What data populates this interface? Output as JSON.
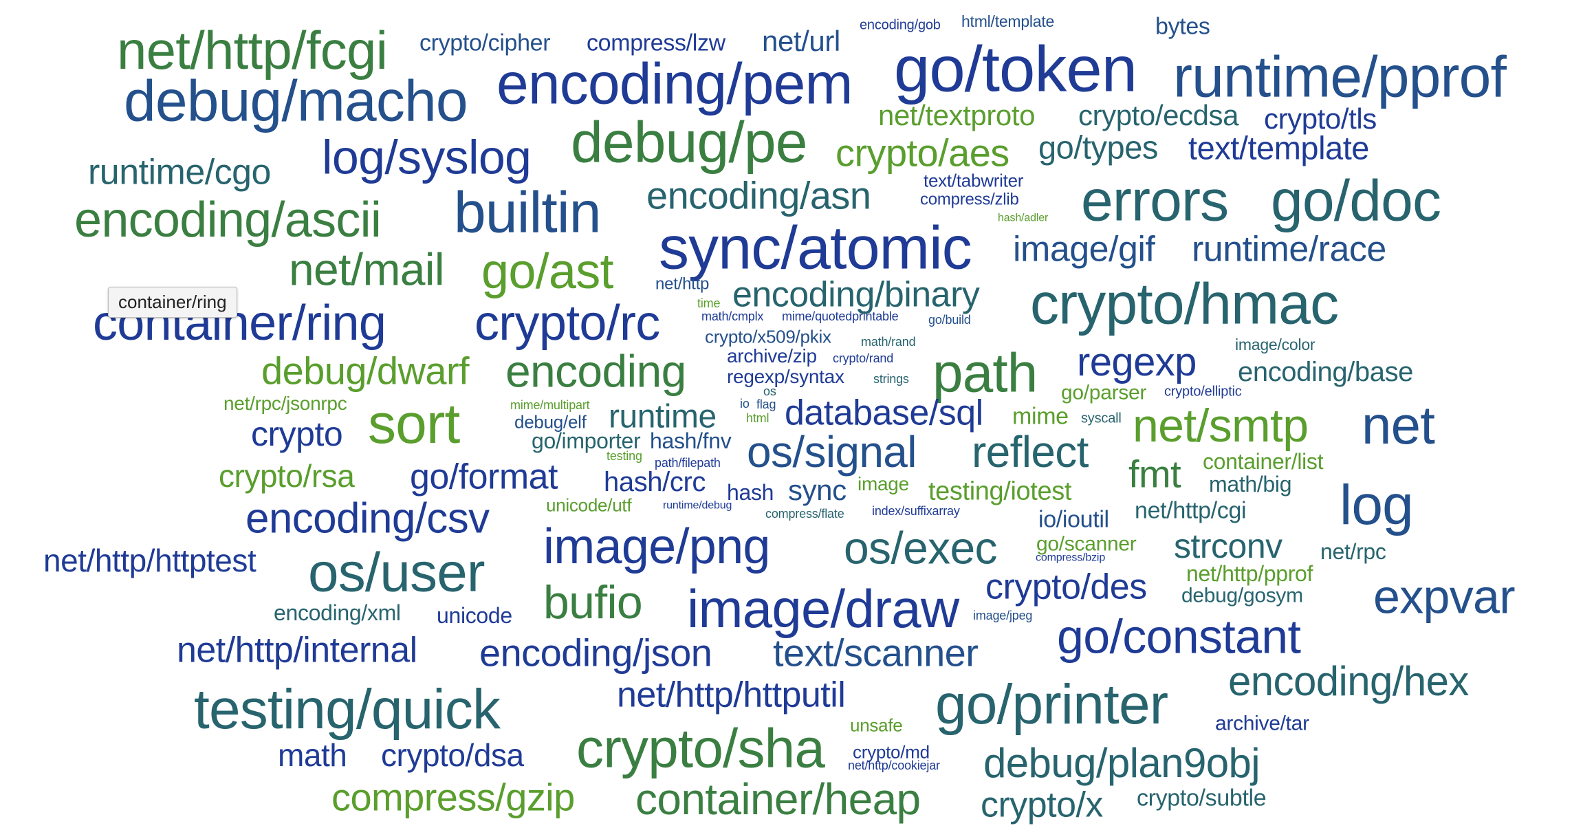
{
  "colors": {
    "blue": "#1f3b96",
    "navy": "#24508c",
    "teal": "#27646e",
    "green": "#3a7f41",
    "lime": "#5a9e2d"
  },
  "tooltip": {
    "text": "container/ring"
  },
  "words": [
    {
      "text": "net/http/fcgi",
      "color": "green"
    },
    {
      "text": "crypto/cipher",
      "color": "navy"
    },
    {
      "text": "compress/lzw",
      "color": "blue"
    },
    {
      "text": "net/url",
      "color": "navy"
    },
    {
      "text": "encoding/gob",
      "color": "blue"
    },
    {
      "text": "html/template",
      "color": "navy"
    },
    {
      "text": "bytes",
      "color": "navy"
    },
    {
      "text": "debug/macho",
      "color": "navy"
    },
    {
      "text": "encoding/pem",
      "color": "blue"
    },
    {
      "text": "go/token",
      "color": "blue"
    },
    {
      "text": "runtime/pprof",
      "color": "navy"
    },
    {
      "text": "net/textproto",
      "color": "lime"
    },
    {
      "text": "crypto/ecdsa",
      "color": "teal"
    },
    {
      "text": "crypto/tls",
      "color": "blue"
    },
    {
      "text": "runtime/cgo",
      "color": "teal"
    },
    {
      "text": "log/syslog",
      "color": "blue"
    },
    {
      "text": "debug/pe",
      "color": "green"
    },
    {
      "text": "crypto/aes",
      "color": "lime"
    },
    {
      "text": "go/types",
      "color": "teal"
    },
    {
      "text": "text/template",
      "color": "blue"
    },
    {
      "text": "encoding/ascii",
      "color": "green"
    },
    {
      "text": "builtin",
      "color": "navy"
    },
    {
      "text": "encoding/asn",
      "color": "teal"
    },
    {
      "text": "text/tabwriter",
      "color": "blue"
    },
    {
      "text": "compress/zlib",
      "color": "blue"
    },
    {
      "text": "hash/adler",
      "color": "lime"
    },
    {
      "text": "errors",
      "color": "teal"
    },
    {
      "text": "go/doc",
      "color": "teal"
    },
    {
      "text": "net/mail",
      "color": "green"
    },
    {
      "text": "go/ast",
      "color": "lime"
    },
    {
      "text": "sync/atomic",
      "color": "blue"
    },
    {
      "text": "image/gif",
      "color": "navy"
    },
    {
      "text": "runtime/race",
      "color": "navy"
    },
    {
      "text": "net/http",
      "color": "navy"
    },
    {
      "text": "encoding/binary",
      "color": "teal"
    },
    {
      "text": "time",
      "color": "lime"
    },
    {
      "text": "container/ring",
      "color": "blue"
    },
    {
      "text": "crypto/rc",
      "color": "blue"
    },
    {
      "text": "math/cmplx",
      "color": "blue"
    },
    {
      "text": "mime/quotedprintable",
      "color": "blue"
    },
    {
      "text": "go/build",
      "color": "navy"
    },
    {
      "text": "crypto/hmac",
      "color": "teal"
    },
    {
      "text": "crypto/x509/pkix",
      "color": "navy"
    },
    {
      "text": "math/rand",
      "color": "teal"
    },
    {
      "text": "image/color",
      "color": "teal"
    },
    {
      "text": "debug/dwarf",
      "color": "lime"
    },
    {
      "text": "encoding",
      "color": "green"
    },
    {
      "text": "archive/zip",
      "color": "blue"
    },
    {
      "text": "crypto/rand",
      "color": "blue"
    },
    {
      "text": "path",
      "color": "green"
    },
    {
      "text": "regexp",
      "color": "blue"
    },
    {
      "text": "encoding/base",
      "color": "teal"
    },
    {
      "text": "regexp/syntax",
      "color": "blue"
    },
    {
      "text": "strings",
      "color": "teal"
    },
    {
      "text": "go/parser",
      "color": "lime"
    },
    {
      "text": "crypto/elliptic",
      "color": "blue"
    },
    {
      "text": "os",
      "color": "teal"
    },
    {
      "text": "net/rpc/jsonrpc",
      "color": "lime"
    },
    {
      "text": "sort",
      "color": "lime"
    },
    {
      "text": "mime/multipart",
      "color": "lime"
    },
    {
      "text": "io",
      "color": "navy"
    },
    {
      "text": "flag",
      "color": "navy"
    },
    {
      "text": "runtime",
      "color": "teal"
    },
    {
      "text": "database/sql",
      "color": "blue"
    },
    {
      "text": "mime",
      "color": "lime"
    },
    {
      "text": "syscall",
      "color": "teal"
    },
    {
      "text": "net/smtp",
      "color": "lime"
    },
    {
      "text": "net",
      "color": "navy"
    },
    {
      "text": "crypto",
      "color": "blue"
    },
    {
      "text": "debug/elf",
      "color": "navy"
    },
    {
      "text": "html",
      "color": "lime"
    },
    {
      "text": "go/importer",
      "color": "teal"
    },
    {
      "text": "hash/fnv",
      "color": "navy"
    },
    {
      "text": "os/signal",
      "color": "navy"
    },
    {
      "text": "reflect",
      "color": "teal"
    },
    {
      "text": "testing",
      "color": "lime"
    },
    {
      "text": "path/filepath",
      "color": "blue"
    },
    {
      "text": "crypto/rsa",
      "color": "lime"
    },
    {
      "text": "go/format",
      "color": "blue"
    },
    {
      "text": "hash/crc",
      "color": "blue"
    },
    {
      "text": "fmt",
      "color": "green"
    },
    {
      "text": "container/list",
      "color": "lime"
    },
    {
      "text": "image",
      "color": "lime"
    },
    {
      "text": "hash",
      "color": "blue"
    },
    {
      "text": "sync",
      "color": "navy"
    },
    {
      "text": "testing/iotest",
      "color": "lime"
    },
    {
      "text": "math/big",
      "color": "teal"
    },
    {
      "text": "log",
      "color": "navy"
    },
    {
      "text": "unicode/utf",
      "color": "lime"
    },
    {
      "text": "runtime/debug",
      "color": "blue"
    },
    {
      "text": "compress/flate",
      "color": "teal"
    },
    {
      "text": "index/suffixarray",
      "color": "blue"
    },
    {
      "text": "net/http/cgi",
      "color": "teal"
    },
    {
      "text": "encoding/csv",
      "color": "blue"
    },
    {
      "text": "io/ioutil",
      "color": "navy"
    },
    {
      "text": "image/png",
      "color": "blue"
    },
    {
      "text": "os/exec",
      "color": "teal"
    },
    {
      "text": "go/scanner",
      "color": "lime"
    },
    {
      "text": "compress/bzip",
      "color": "blue"
    },
    {
      "text": "strconv",
      "color": "teal"
    },
    {
      "text": "net/rpc",
      "color": "teal"
    },
    {
      "text": "net/http/httptest",
      "color": "blue"
    },
    {
      "text": "os/user",
      "color": "teal"
    },
    {
      "text": "net/http/pprof",
      "color": "lime"
    },
    {
      "text": "crypto/des",
      "color": "blue"
    },
    {
      "text": "debug/gosym",
      "color": "teal"
    },
    {
      "text": "expvar",
      "color": "navy"
    },
    {
      "text": "encoding/xml",
      "color": "teal"
    },
    {
      "text": "unicode",
      "color": "blue"
    },
    {
      "text": "bufio",
      "color": "green"
    },
    {
      "text": "image/draw",
      "color": "blue"
    },
    {
      "text": "image/jpeg",
      "color": "navy"
    },
    {
      "text": "net/http/internal",
      "color": "blue"
    },
    {
      "text": "encoding/json",
      "color": "blue"
    },
    {
      "text": "text/scanner",
      "color": "navy"
    },
    {
      "text": "go/constant",
      "color": "blue"
    },
    {
      "text": "testing/quick",
      "color": "teal"
    },
    {
      "text": "net/http/httputil",
      "color": "blue"
    },
    {
      "text": "go/printer",
      "color": "teal"
    },
    {
      "text": "encoding/hex",
      "color": "teal"
    },
    {
      "text": "unsafe",
      "color": "lime"
    },
    {
      "text": "archive/tar",
      "color": "blue"
    },
    {
      "text": "math",
      "color": "blue"
    },
    {
      "text": "crypto/dsa",
      "color": "blue"
    },
    {
      "text": "crypto/sha",
      "color": "green"
    },
    {
      "text": "crypto/md",
      "color": "blue"
    },
    {
      "text": "net/http/cookiejar",
      "color": "blue"
    },
    {
      "text": "debug/plan9obj",
      "color": "teal"
    },
    {
      "text": "compress/gzip",
      "color": "lime"
    },
    {
      "text": "container/heap",
      "color": "green"
    },
    {
      "text": "crypto/x",
      "color": "teal"
    },
    {
      "text": "crypto/subtle",
      "color": "teal"
    }
  ]
}
